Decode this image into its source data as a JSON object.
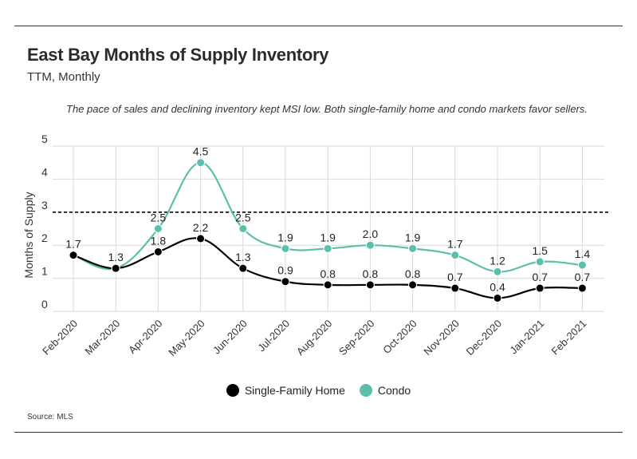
{
  "title": "East Bay Months of Supply Inventory",
  "subtitle": "TTM, Monthly",
  "note": "The pace of sales and declining inventory kept MSI low. Both single-family home and condo markets favor sellers.",
  "source": "Source:  MLS",
  "colors": {
    "sfh": "#000000",
    "condo": "#5bbfab",
    "grid": "#d9d9d9",
    "reference": "#000000"
  },
  "chart_data": {
    "type": "line",
    "categories": [
      "Feb-2020",
      "Mar-2020",
      "Apr-2020",
      "May-2020",
      "Jun-2020",
      "Jul-2020",
      "Aug-2020",
      "Sep-2020",
      "Oct-2020",
      "Nov-2020",
      "Dec-2020",
      "Jan-2021",
      "Feb-2021"
    ],
    "series": [
      {
        "name": "Single-Family Home",
        "values": [
          1.7,
          1.3,
          1.8,
          2.2,
          1.3,
          0.9,
          0.8,
          0.8,
          0.8,
          0.7,
          0.4,
          0.7,
          0.7
        ],
        "labels": [
          "",
          "",
          "1.8",
          "2.2",
          "1.3",
          "0.9",
          "0.8",
          "0.8",
          "0.8",
          "0.7",
          "0.4",
          "0.7",
          "0.7"
        ]
      },
      {
        "name": "Condo",
        "values": [
          1.7,
          1.3,
          2.5,
          4.5,
          2.5,
          1.9,
          1.9,
          2.0,
          1.9,
          1.7,
          1.2,
          1.5,
          1.4
        ],
        "labels": [
          "1.7",
          "1.3",
          "2.5",
          "4.5",
          "2.5",
          "1.9",
          "1.9",
          "2.0",
          "1.9",
          "1.7",
          "1.2",
          "1.5",
          "1.4"
        ]
      }
    ],
    "yticks": [
      "0",
      "1",
      "2",
      "3",
      "4",
      "5"
    ],
    "ylabel": "Months of Supply",
    "ylim": [
      0,
      5
    ],
    "reference_line": 3,
    "grid": true,
    "legend_position": "bottom-center"
  }
}
